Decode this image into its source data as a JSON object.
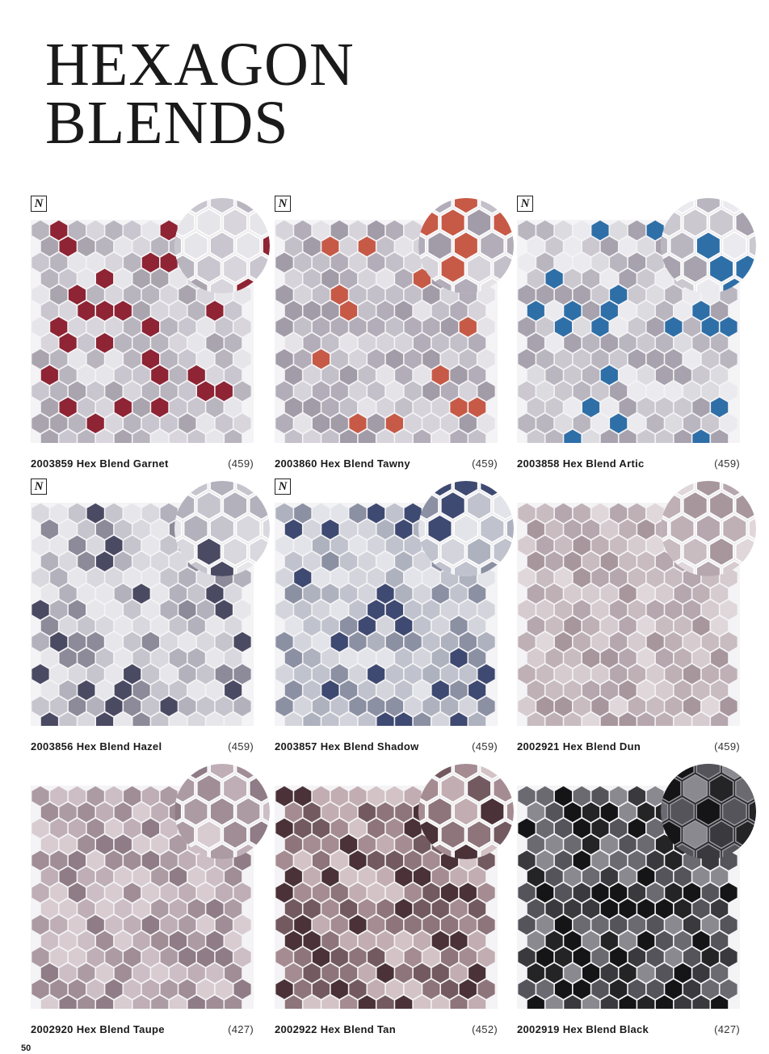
{
  "page": {
    "title_line1": "HEXAGON",
    "title_line2": "BLENDS",
    "page_number": "50"
  },
  "products": [
    {
      "code": "2003859",
      "name": "Hex Blend Garnet",
      "price": "(459)",
      "new_badge": "N",
      "has_badge": true,
      "colors": {
        "base": [
          "#d8d6dc",
          "#c9c6cf",
          "#b9b5bf",
          "#e6e5e9",
          "#a9a4ae"
        ],
        "accent": "#8e2434"
      }
    },
    {
      "code": "2003860",
      "name": "Hex Blend Tawny",
      "price": "(459)",
      "new_badge": "N",
      "has_badge": true,
      "colors": {
        "base": [
          "#d6d3da",
          "#c4c0c9",
          "#b3adb9",
          "#e5e3e8",
          "#a29ba8"
        ],
        "accent": "#c75a47"
      }
    },
    {
      "code": "2003858",
      "name": "Hex Blend Artic",
      "price": "(459)",
      "new_badge": "N",
      "has_badge": true,
      "colors": {
        "base": [
          "#dcdbe0",
          "#cbc8d0",
          "#bab6c0",
          "#ebeaee",
          "#a7a2ad"
        ],
        "accent": "#2e6fa8"
      }
    },
    {
      "code": "2003856",
      "name": "Hex Blend Hazel",
      "price": "(459)",
      "new_badge": "N",
      "has_badge": true,
      "colors": {
        "base": [
          "#d9d8de",
          "#c6c4cd",
          "#b3b1bc",
          "#e7e6ea",
          "#8d8a99"
        ],
        "accent": "#4a4a63"
      }
    },
    {
      "code": "2003857",
      "name": "Hex Blend Shadow",
      "price": "(459)",
      "new_badge": "N",
      "has_badge": true,
      "colors": {
        "base": [
          "#d4d5dc",
          "#c0c3cd",
          "#aeb2bf",
          "#e3e4e9",
          "#8b90a3"
        ],
        "accent": "#3f4a72"
      }
    },
    {
      "code": "2002921",
      "name": "Hex Blend Dun",
      "price": "(459)",
      "new_badge": "",
      "has_badge": false,
      "colors": {
        "base": [
          "#c9bcc1",
          "#d6cbcf",
          "#bfb0b6",
          "#e0d7da",
          "#b6a6ad"
        ],
        "accent": "#a8969d"
      }
    },
    {
      "code": "2002920",
      "name": "Hex Blend Taupe",
      "price": "(427)",
      "new_badge": "",
      "has_badge": false,
      "colors": {
        "base": [
          "#bfaeb6",
          "#cdbec5",
          "#ad9ba4",
          "#d8ccd1",
          "#a08d96"
        ],
        "accent": "#8f7c86"
      }
    },
    {
      "code": "2002922",
      "name": "Hex Blend Tan",
      "price": "(452)",
      "new_badge": "",
      "has_badge": false,
      "colors": {
        "base": [
          "#8e747b",
          "#a58c92",
          "#c2adb2",
          "#735a61",
          "#d3c3c7"
        ],
        "accent": "#4a3238"
      }
    },
    {
      "code": "2002919",
      "name": "Hex Blend Black",
      "price": "(427)",
      "new_badge": "",
      "has_badge": false,
      "colors": {
        "base": [
          "#3a393d",
          "#55545a",
          "#6b6a71",
          "#242326",
          "#8a898f"
        ],
        "accent": "#151417"
      }
    }
  ]
}
